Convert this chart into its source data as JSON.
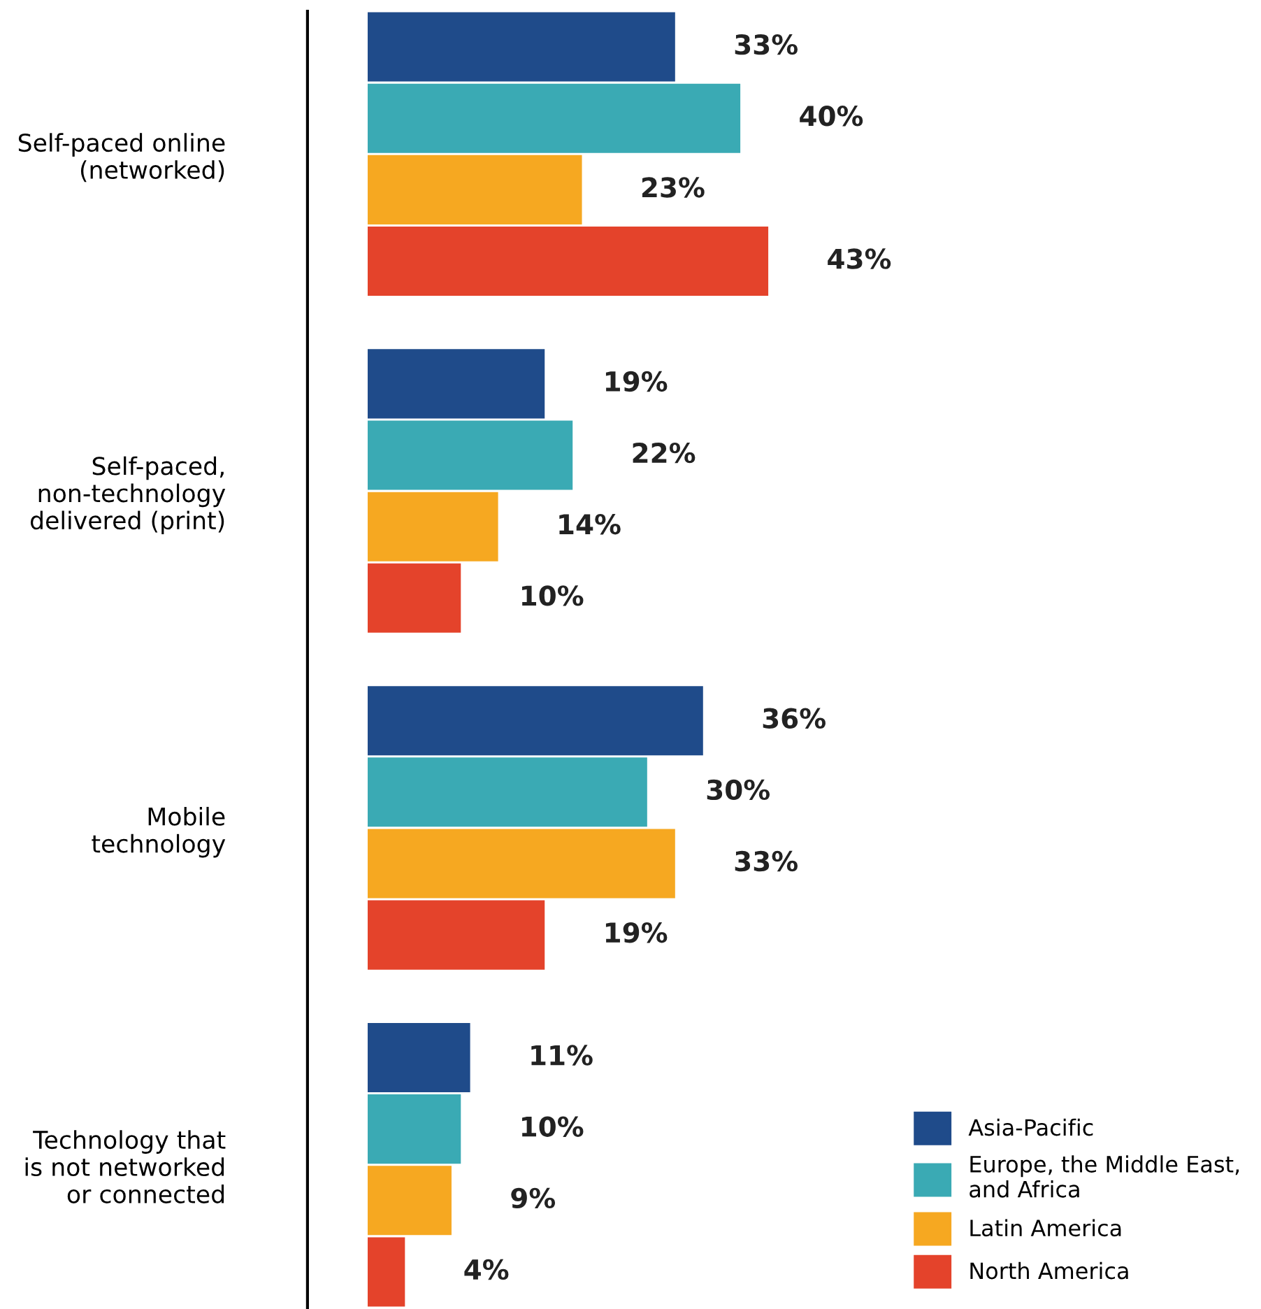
{
  "chart_data": {
    "type": "bar",
    "orientation": "horizontal",
    "categories": [
      "Self-paced online\n(networked)",
      "Self-paced,\nnon-technology\ndelivered (print)",
      "Mobile\ntechnology",
      "Technology that\nis not networked\nor connected"
    ],
    "series": [
      {
        "name": "Asia-Pacific",
        "color": "#1f4b8a",
        "values": [
          33,
          19,
          36,
          11
        ],
        "value_labels": [
          "33%",
          "19%",
          "36%",
          "11%"
        ]
      },
      {
        "name": "Europe, the Middle East,\nand Africa",
        "color": "#3aaab4",
        "values": [
          40,
          22,
          30,
          10
        ],
        "value_labels": [
          "40%",
          "22%",
          "30%",
          "10%"
        ]
      },
      {
        "name": "Latin America",
        "color": "#f6a821",
        "values": [
          23,
          14,
          33,
          9
        ],
        "value_labels": [
          "23%",
          "14%",
          "33%",
          "9%"
        ]
      },
      {
        "name": "North America",
        "color": "#e4432b",
        "values": [
          43,
          10,
          19,
          4
        ],
        "value_labels": [
          "43%",
          "10%",
          "19%",
          "4%"
        ]
      }
    ],
    "tick_labels": "y",
    "grid": false,
    "legend": "bottom right"
  }
}
